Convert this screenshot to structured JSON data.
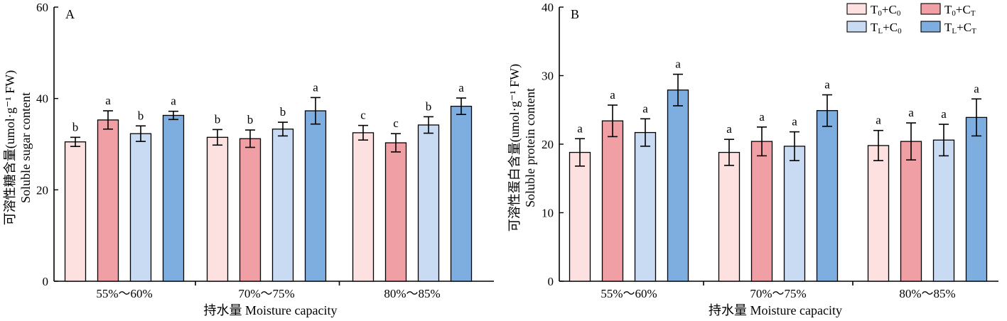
{
  "chart_data": [
    {
      "type": "bar",
      "panel_label": "A",
      "ylabel_cn": "可溶性糖含量(umol·g⁻¹ FW)",
      "ylabel_en": "Soluble sugar content",
      "xlabel": "持水量 Moisture capacity",
      "categories": [
        "55%～60%",
        "70%～75%",
        "80%～85%"
      ],
      "ylim": [
        0,
        60
      ],
      "yticks": [
        "0",
        "20",
        "40",
        "60"
      ],
      "series": [
        {
          "key": "T0C0",
          "values": [
            30.5,
            31.5,
            32.5
          ],
          "errors": [
            1.0,
            1.7,
            1.6
          ],
          "letters": [
            "b",
            "b",
            "c"
          ]
        },
        {
          "key": "T0CT",
          "values": [
            35.3,
            31.2,
            30.3
          ],
          "errors": [
            2.0,
            1.9,
            2.0
          ],
          "letters": [
            "a",
            "b",
            "c"
          ]
        },
        {
          "key": "TLC0",
          "values": [
            32.3,
            33.3,
            34.2
          ],
          "errors": [
            1.7,
            1.5,
            1.8
          ],
          "letters": [
            "b",
            "b",
            "b"
          ]
        },
        {
          "key": "TLCT",
          "values": [
            36.3,
            37.3,
            38.3
          ],
          "errors": [
            0.9,
            2.9,
            1.8
          ],
          "letters": [
            "a",
            "a",
            "a"
          ]
        }
      ]
    },
    {
      "type": "bar",
      "panel_label": "B",
      "ylabel_cn": "可溶性蛋白含量(umol·g⁻¹ FW)",
      "ylabel_en": "Soluble protein content",
      "xlabel": "持水量 Moisture capacity",
      "categories": [
        "55%～60%",
        "70%～75%",
        "80%～85%"
      ],
      "ylim": [
        0,
        40
      ],
      "yticks": [
        "0",
        "10",
        "20",
        "30",
        "40"
      ],
      "series": [
        {
          "key": "T0C0",
          "values": [
            18.8,
            18.8,
            19.8
          ],
          "errors": [
            2.0,
            1.9,
            2.2
          ],
          "letters": [
            "a",
            "a",
            "a"
          ]
        },
        {
          "key": "T0CT",
          "values": [
            23.4,
            20.4,
            20.4
          ],
          "errors": [
            2.3,
            2.1,
            2.7
          ],
          "letters": [
            "a",
            "a",
            "a"
          ]
        },
        {
          "key": "TLC0",
          "values": [
            21.7,
            19.7,
            20.6
          ],
          "errors": [
            2.0,
            2.1,
            2.3
          ],
          "letters": [
            "a",
            "a",
            "a"
          ]
        },
        {
          "key": "TLCT",
          "values": [
            27.9,
            24.9,
            23.9
          ],
          "errors": [
            2.3,
            2.3,
            2.7
          ],
          "letters": [
            "a",
            "a",
            "a"
          ]
        }
      ]
    }
  ],
  "legend": {
    "placement": "top-right",
    "items": [
      {
        "key": "T0C0",
        "main1": "T",
        "sub1": "0",
        "main2": "+C",
        "sub2": "0",
        "color": "#fde0e0"
      },
      {
        "key": "T0CT",
        "main1": "T",
        "sub1": "0",
        "main2": "+C",
        "sub2": "T",
        "color": "#f0a0a4"
      },
      {
        "key": "TLC0",
        "main1": "T",
        "sub1": "L",
        "main2": "+C",
        "sub2": "0",
        "color": "#c8dbf2"
      },
      {
        "key": "TLCT",
        "main1": "T",
        "sub1": "L",
        "main2": "+C",
        "sub2": "T",
        "color": "#7eaee0"
      }
    ]
  }
}
